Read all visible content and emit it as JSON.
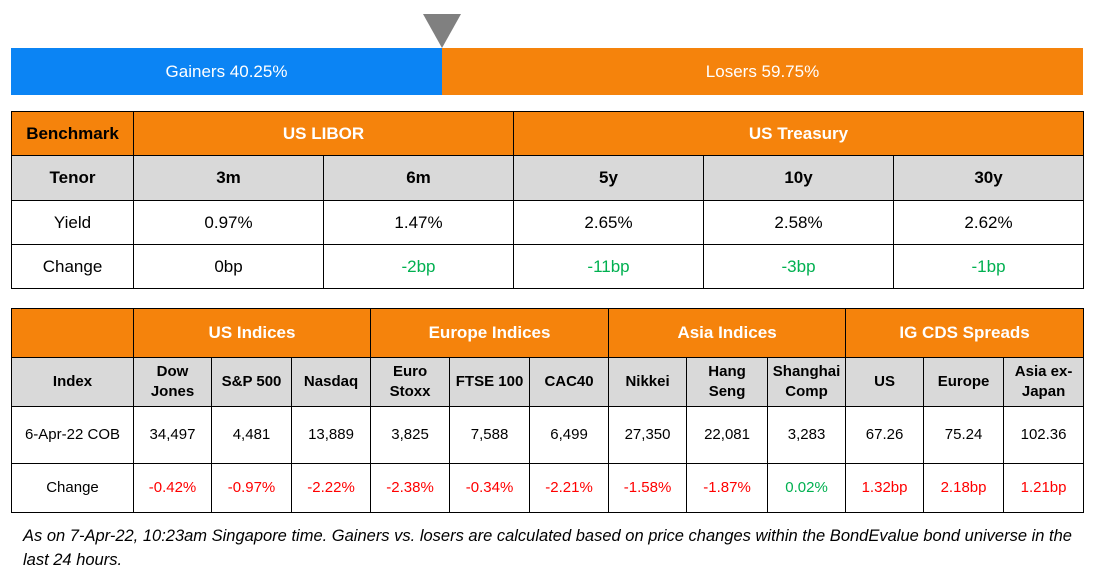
{
  "bar": {
    "gainers_label": "Gainers 40.25%",
    "losers_label": "Losers 59.75%",
    "gainers_fraction": 0.4025,
    "colors": {
      "gainers": "#0b84f4",
      "losers": "#f5830c",
      "pointer": "#808080"
    }
  },
  "rates": {
    "benchmark_label": "Benchmark",
    "group_libor": "US LIBOR",
    "group_treasury": "US Treasury",
    "tenor_label": "Tenor",
    "yield_label": "Yield",
    "change_label": "Change",
    "tenors": [
      "3m",
      "6m",
      "5y",
      "10y",
      "30y"
    ],
    "yields": [
      "0.97%",
      "1.47%",
      "2.65%",
      "2.58%",
      "2.62%"
    ],
    "changes": [
      "0bp",
      "-2bp",
      "-11bp",
      "-3bp",
      "-1bp"
    ]
  },
  "indices": {
    "groups": [
      "US Indices",
      "Europe Indices",
      "Asia Indices",
      "IG CDS Spreads"
    ],
    "index_label": "Index",
    "date_label": "6-Apr-22 COB",
    "change_label": "Change",
    "columns": [
      {
        "l1": "Dow",
        "l2": "Jones"
      },
      {
        "l1": "S&P 500",
        "l2": ""
      },
      {
        "l1": "Nasdaq",
        "l2": ""
      },
      {
        "l1": "Euro",
        "l2": "Stoxx"
      },
      {
        "l1": "FTSE 100",
        "l2": ""
      },
      {
        "l1": "CAC40",
        "l2": ""
      },
      {
        "l1": "Nikkei",
        "l2": ""
      },
      {
        "l1": "Hang",
        "l2": "Seng"
      },
      {
        "l1": "Shanghai",
        "l2": "Comp"
      },
      {
        "l1": "US",
        "l2": ""
      },
      {
        "l1": "Europe",
        "l2": ""
      },
      {
        "l1": "Asia ex-",
        "l2": "Japan"
      }
    ],
    "values": [
      "34,497",
      "4,481",
      "13,889",
      "3,825",
      "7,588",
      "6,499",
      "27,350",
      "22,081",
      "3,283",
      "67.26",
      "75.24",
      "102.36"
    ],
    "changes": [
      "-0.42%",
      "-0.97%",
      "-2.22%",
      "-2.38%",
      "-0.34%",
      "-2.21%",
      "-1.58%",
      "-1.87%",
      "0.02%",
      "1.32bp",
      "2.18bp",
      "1.21bp"
    ],
    "change_colors": {
      "down": "#ff0000",
      "up": "#00b050",
      "spread": "#ff0000"
    }
  },
  "footnote": "As on 7-Apr-22, 10:23am Singapore time. Gainers vs. losers are calculated based on price changes within the BondEvalue bond universe in the last 24 hours."
}
